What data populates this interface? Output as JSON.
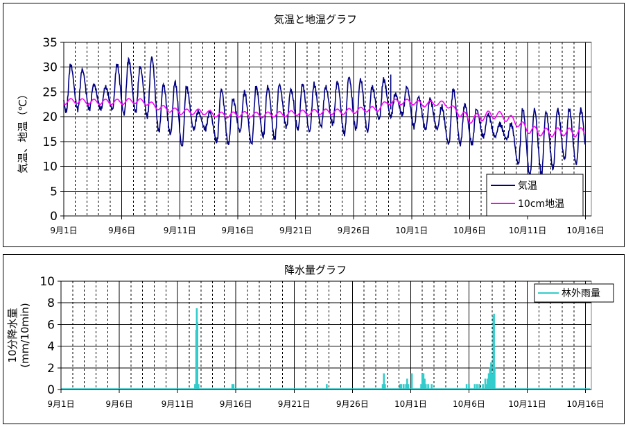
{
  "chart_data": [
    {
      "type": "line",
      "title": "気温と地温グラフ",
      "ylabel": "気温、地温（℃）",
      "xlabel": "",
      "ylim": [
        0,
        35
      ],
      "yticks": [
        0,
        5,
        10,
        15,
        20,
        25,
        30,
        35
      ],
      "x_tick_labels": [
        "9月1日",
        "9月6日",
        "9月11日",
        "9月16日",
        "9月21日",
        "9月26日",
        "10月1日",
        "10月6日",
        "10月11日",
        "10月16日"
      ],
      "x_range_days": [
        0,
        45.5
      ],
      "grid": "horizontal solid gridlines; vertical dashed daily lines, solid every 5 days",
      "legend_position": "bottom-right",
      "colors": {
        "気温": "#000080",
        "10cm地温": "#ff00ff"
      },
      "series": [
        {
          "name": "気温",
          "daily_min": [
            21,
            21.5,
            21.5,
            21.5,
            21.5,
            20.5,
            21,
            20,
            17,
            16.5,
            14,
            17.5,
            17.5,
            15,
            14.5,
            17,
            14.5,
            16,
            15.5,
            18,
            17.5,
            17,
            18,
            18.5,
            16.5,
            17.5,
            17,
            19.5,
            20,
            20.5,
            18,
            17.5,
            17.5,
            14.5,
            14.5,
            14.5,
            16,
            16,
            15.5,
            10.5,
            8,
            8.5,
            9.5,
            11.5,
            10.5
          ],
          "daily_max": [
            30.5,
            29.5,
            26.5,
            26,
            30.5,
            31.5,
            30,
            32,
            26.5,
            27,
            26,
            21,
            21,
            25.5,
            23.5,
            25,
            26,
            26,
            26.5,
            25.5,
            26.5,
            26.5,
            26,
            27,
            28,
            27.5,
            26,
            27.5,
            24.5,
            26,
            24,
            23.5,
            22,
            25.5,
            22.5,
            21.5,
            20.5,
            18.5,
            18.5,
            21.5,
            21.5,
            21,
            21.5,
            21.5,
            21.5
          ],
          "spike": {
            "day": 28.2,
            "value": 28.5
          }
        },
        {
          "name": "10cm地温",
          "daily_mean": [
            23,
            23.2,
            23,
            23,
            23,
            23,
            23.2,
            23,
            22,
            21.5,
            21,
            21,
            21,
            20.5,
            20.3,
            20.5,
            20.5,
            20.3,
            20.5,
            20.5,
            20.8,
            20.8,
            21,
            21,
            21,
            21.2,
            21.5,
            21.5,
            23,
            23,
            23,
            22.5,
            22.8,
            22.5,
            21,
            19.5,
            20,
            20.5,
            20,
            19,
            17.5,
            17,
            16.8,
            17,
            16.8,
            17
          ]
        }
      ]
    },
    {
      "type": "bar",
      "title": "降水量グラフ",
      "ylabel": "10分降水量 (mm/10min)",
      "xlabel": "",
      "ylim": [
        0,
        10
      ],
      "yticks": [
        0,
        2,
        4,
        6,
        8,
        10
      ],
      "x_tick_labels": [
        "9月1日",
        "9月6日",
        "9月11日",
        "9月16日",
        "9月21日",
        "9月26日",
        "10月1日",
        "10月6日",
        "10月11日",
        "10月16日"
      ],
      "x_range_days": [
        0,
        45.5
      ],
      "grid": "horizontal solid gridlines; vertical dashed daily lines, solid every 5 days",
      "legend_position": "top-right",
      "colors": {
        "林外雨量": "#33cccc"
      },
      "series": [
        {
          "name": "林外雨量",
          "points": [
            {
              "day": 11.5,
              "value": 0.5
            },
            {
              "day": 11.6,
              "value": 5.5
            },
            {
              "day": 11.65,
              "value": 7.5
            },
            {
              "day": 11.7,
              "value": 6.2
            },
            {
              "day": 11.8,
              "value": 0.5
            },
            {
              "day": 14.7,
              "value": 0.5
            },
            {
              "day": 14.8,
              "value": 0.5
            },
            {
              "day": 22.8,
              "value": 0.5
            },
            {
              "day": 27.6,
              "value": 0.5
            },
            {
              "day": 27.7,
              "value": 1.5
            },
            {
              "day": 27.8,
              "value": 0.5
            },
            {
              "day": 29.1,
              "value": 0.5
            },
            {
              "day": 29.2,
              "value": 0.5
            },
            {
              "day": 29.4,
              "value": 0.5
            },
            {
              "day": 29.6,
              "value": 0.5
            },
            {
              "day": 29.7,
              "value": 1.0
            },
            {
              "day": 29.8,
              "value": 0.5
            },
            {
              "day": 30.1,
              "value": 1.5
            },
            {
              "day": 30.9,
              "value": 0.5
            },
            {
              "day": 31.0,
              "value": 1.5
            },
            {
              "day": 31.1,
              "value": 1.5
            },
            {
              "day": 31.2,
              "value": 1.0
            },
            {
              "day": 31.3,
              "value": 0.5
            },
            {
              "day": 31.5,
              "value": 0.5
            },
            {
              "day": 31.8,
              "value": 0.5
            },
            {
              "day": 34.8,
              "value": 0.5
            },
            {
              "day": 35.0,
              "value": 0.5
            },
            {
              "day": 35.5,
              "value": 0.5
            },
            {
              "day": 35.7,
              "value": 0.5
            },
            {
              "day": 35.9,
              "value": 0.5
            },
            {
              "day": 36.2,
              "value": 0.5
            },
            {
              "day": 36.4,
              "value": 1.0
            },
            {
              "day": 36.5,
              "value": 0.5
            },
            {
              "day": 36.6,
              "value": 1.0
            },
            {
              "day": 36.7,
              "value": 1.5
            },
            {
              "day": 36.8,
              "value": 2.0
            },
            {
              "day": 36.9,
              "value": 2.5
            },
            {
              "day": 37.0,
              "value": 1.5
            },
            {
              "day": 37.1,
              "value": 6.8
            },
            {
              "day": 37.15,
              "value": 7.0
            },
            {
              "day": 37.2,
              "value": 2.0
            }
          ]
        }
      ]
    }
  ]
}
